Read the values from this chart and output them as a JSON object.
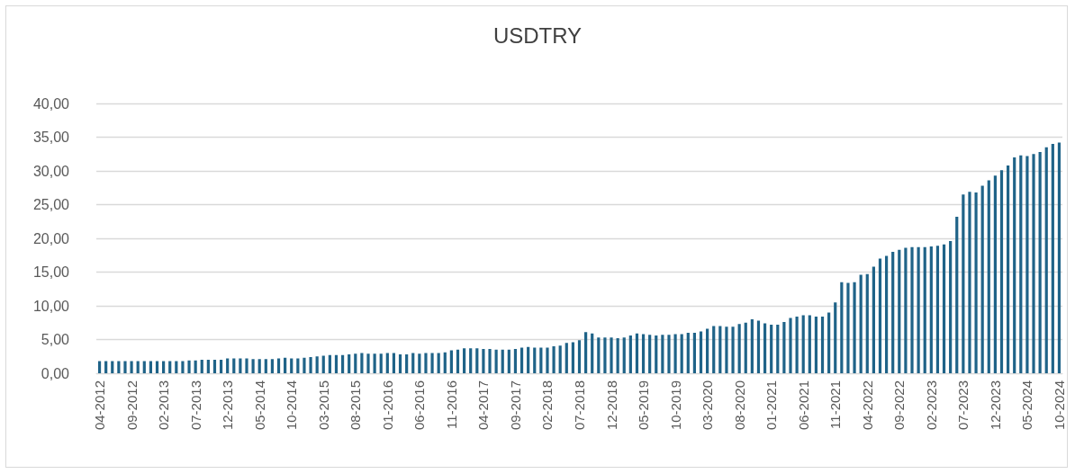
{
  "chart_data": {
    "type": "bar",
    "title": "USDTRY",
    "categories": [
      "04-2012",
      null,
      null,
      null,
      null,
      "09-2012",
      null,
      null,
      null,
      null,
      "02-2013",
      null,
      null,
      null,
      null,
      "07-2013",
      null,
      null,
      null,
      null,
      "12-2013",
      null,
      null,
      null,
      null,
      "05-2014",
      null,
      null,
      null,
      null,
      "10-2014",
      null,
      null,
      null,
      null,
      "03-2015",
      null,
      null,
      null,
      null,
      "08-2015",
      null,
      null,
      null,
      null,
      "01-2016",
      null,
      null,
      null,
      null,
      "06-2016",
      null,
      null,
      null,
      null,
      "11-2016",
      null,
      null,
      null,
      null,
      "04-2017",
      null,
      null,
      null,
      null,
      "09-2017",
      null,
      null,
      null,
      null,
      "02-2018",
      null,
      null,
      null,
      null,
      "07-2018",
      null,
      null,
      null,
      null,
      "12-2018",
      null,
      null,
      null,
      null,
      "05-2019",
      null,
      null,
      null,
      null,
      "10-2019",
      null,
      null,
      null,
      null,
      "03-2020",
      null,
      null,
      null,
      null,
      "08-2020",
      null,
      null,
      null,
      null,
      "01-2021",
      null,
      null,
      null,
      null,
      "06-2021",
      null,
      null,
      null,
      null,
      "11-2021",
      null,
      null,
      null,
      null,
      "04-2022",
      null,
      null,
      null,
      null,
      "09-2022",
      null,
      null,
      null,
      null,
      "02-2023",
      null,
      null,
      null,
      null,
      "07-2023",
      null,
      null,
      null,
      null,
      "12-2023",
      null,
      null,
      null,
      null,
      "05-2024",
      null,
      null,
      null,
      null,
      "10-2024"
    ],
    "values": [
      1.8,
      1.8,
      1.8,
      1.8,
      1.8,
      1.8,
      1.8,
      1.8,
      1.8,
      1.8,
      1.8,
      1.8,
      1.8,
      1.8,
      1.9,
      1.9,
      2.0,
      2.0,
      2.0,
      2.0,
      2.2,
      2.2,
      2.2,
      2.2,
      2.1,
      2.1,
      2.1,
      2.1,
      2.2,
      2.3,
      2.2,
      2.2,
      2.3,
      2.4,
      2.5,
      2.6,
      2.7,
      2.7,
      2.7,
      2.8,
      2.9,
      3.0,
      2.9,
      2.9,
      2.9,
      3.0,
      3.0,
      2.8,
      2.8,
      3.0,
      2.9,
      3.0,
      3.0,
      3.0,
      3.1,
      3.4,
      3.5,
      3.7,
      3.7,
      3.7,
      3.6,
      3.6,
      3.5,
      3.5,
      3.5,
      3.6,
      3.8,
      3.9,
      3.8,
      3.8,
      3.8,
      4.0,
      4.1,
      4.5,
      4.6,
      4.9,
      6.1,
      5.9,
      5.3,
      5.3,
      5.3,
      5.2,
      5.3,
      5.6,
      5.9,
      5.8,
      5.7,
      5.6,
      5.7,
      5.7,
      5.8,
      5.8,
      6.0,
      6.0,
      6.2,
      6.6,
      7.0,
      7.0,
      6.9,
      6.9,
      7.3,
      7.5,
      8.0,
      7.8,
      7.4,
      7.2,
      7.2,
      7.6,
      8.2,
      8.4,
      8.6,
      8.6,
      8.4,
      8.4,
      9.0,
      10.5,
      13.5,
      13.4,
      13.5,
      14.6,
      14.7,
      15.8,
      17.0,
      17.4,
      18.0,
      18.3,
      18.6,
      18.7,
      18.7,
      18.7,
      18.8,
      18.9,
      19.1,
      19.6,
      23.2,
      26.5,
      26.9,
      26.8,
      27.8,
      28.6,
      29.3,
      30.1,
      30.8,
      32.0,
      32.3,
      32.2,
      32.5,
      32.8,
      33.5,
      34.0,
      34.2
    ],
    "color": "#1f6388",
    "ylim": [
      0,
      40
    ],
    "yticks": [
      {
        "value": 0,
        "label": "0,00"
      },
      {
        "value": 5,
        "label": "5,00"
      },
      {
        "value": 10,
        "label": "10,00"
      },
      {
        "value": 15,
        "label": "15,00"
      },
      {
        "value": 20,
        "label": "20,00"
      },
      {
        "value": 25,
        "label": "25,00"
      },
      {
        "value": 30,
        "label": "30,00"
      },
      {
        "value": 35,
        "label": "35,00"
      },
      {
        "value": 40,
        "label": "40,00"
      }
    ],
    "grid": "y"
  }
}
